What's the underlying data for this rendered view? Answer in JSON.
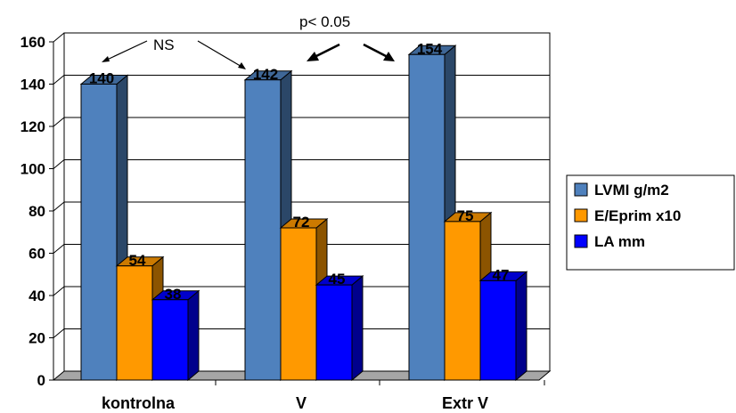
{
  "chart_data": {
    "type": "bar",
    "categories": [
      "kontrolna",
      "V",
      "Extr V"
    ],
    "series": [
      {
        "name": "LVMI g/m2",
        "values": [
          140,
          142,
          154
        ],
        "color": "#4f81bd"
      },
      {
        "name": "E/Eprim x10",
        "values": [
          54,
          72,
          75
        ],
        "color": "#ff9900"
      },
      {
        "name": "LA mm",
        "values": [
          38,
          45,
          47
        ],
        "color": "#0000ff"
      }
    ],
    "ylim": [
      0,
      160
    ],
    "yticks": [
      0,
      20,
      40,
      60,
      80,
      100,
      120,
      140,
      160
    ],
    "grid": true,
    "legend": "right",
    "style": "3d",
    "annotations": {
      "ns": "NS",
      "pvalue": "p< 0.05"
    }
  }
}
